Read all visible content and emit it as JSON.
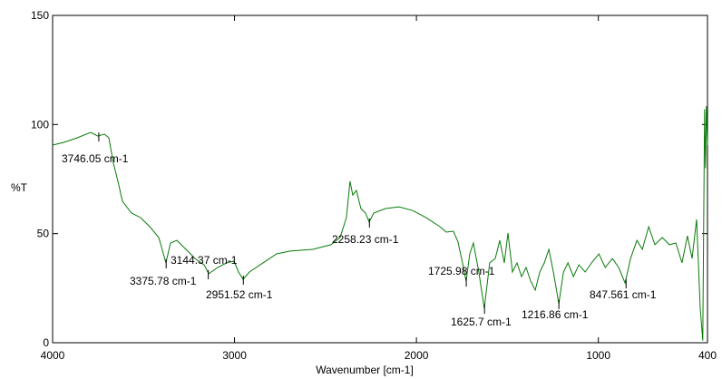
{
  "chart_data": {
    "type": "line",
    "xlabel": "Wavenumber [cm-1]",
    "ylabel": "%T",
    "color": "#0a7a0a",
    "xlim": [
      4000,
      400
    ],
    "ylim": [
      0,
      150
    ],
    "xticks": [
      4000,
      3000,
      2000,
      1000,
      400
    ],
    "yticks": [
      0,
      50,
      100,
      150
    ],
    "x": [
      4000,
      3940,
      3865,
      3791,
      3751,
      3716,
      3691,
      3666,
      3641,
      3616,
      3566,
      3516,
      3466,
      3416,
      3377,
      3352,
      3317,
      3267,
      3217,
      3167,
      3142,
      3093,
      3043,
      3003,
      2978,
      2953,
      2918,
      2843,
      2769,
      2694,
      2569,
      2470,
      2420,
      2385,
      2365,
      2350,
      2330,
      2305,
      2280,
      2260,
      2235,
      2170,
      2096,
      2021,
      1946,
      1871,
      1836,
      1797,
      1772,
      1747,
      1727,
      1707,
      1687,
      1657,
      1627,
      1597,
      1567,
      1542,
      1517,
      1497,
      1472,
      1447,
      1422,
      1397,
      1372,
      1347,
      1322,
      1297,
      1272,
      1247,
      1217,
      1192,
      1167,
      1137,
      1107,
      1072,
      1037,
      997,
      962,
      923,
      888,
      853,
      823,
      788,
      758,
      723,
      689,
      649,
      609,
      574,
      540,
      510,
      485,
      460,
      440,
      426,
      416,
      411,
      406,
      400
    ],
    "values": [
      90.6,
      91.8,
      93.9,
      96.4,
      94.7,
      95.6,
      93.9,
      82.3,
      74,
      64.8,
      59.4,
      57.3,
      53.2,
      48.2,
      36.6,
      45.7,
      46.9,
      42.8,
      38.6,
      35.7,
      31.6,
      34.5,
      36.6,
      37.4,
      32.4,
      29.1,
      32.4,
      36.6,
      40.7,
      42,
      42.8,
      44.9,
      48.2,
      57.3,
      74,
      67.7,
      69.8,
      61.5,
      59.4,
      55.3,
      59.4,
      61.5,
      62.3,
      60.6,
      57.3,
      53.2,
      50.7,
      51.1,
      46.4,
      36.6,
      28.2,
      40.7,
      45.7,
      32.4,
      15.8,
      36.6,
      38.6,
      46.9,
      36.6,
      50.3,
      32.4,
      36.6,
      30.3,
      34.5,
      28.2,
      24.1,
      32.4,
      36.6,
      42.8,
      32.4,
      17.9,
      32.4,
      36.6,
      30.3,
      35.7,
      32.4,
      36.6,
      40.7,
      34.5,
      38.6,
      34.5,
      27.4,
      38.6,
      46.9,
      42.8,
      53.2,
      44.9,
      48.2,
      44.9,
      45.7,
      36.6,
      49,
      38.6,
      56.5,
      15.8,
      1,
      107,
      80,
      108.4,
      90.6
    ],
    "annotations": [
      {
        "text": "3746.05 cm-1",
        "x": 3746.05,
        "y": 94.7
      },
      {
        "text": "3144.37 cm-1",
        "x": 3144.37,
        "y": 31.6
      },
      {
        "text": "3375.78 cm-1",
        "x": 3375.78,
        "y": 36.6
      },
      {
        "text": "2951.52 cm-1",
        "x": 2951.52,
        "y": 29.1
      },
      {
        "text": "2258.23 cm-1",
        "x": 2258.23,
        "y": 55.3
      },
      {
        "text": "1725.98 cm-1",
        "x": 1725.98,
        "y": 28.2
      },
      {
        "text": "1625.7 cm-1",
        "x": 1625.7,
        "y": 15.8
      },
      {
        "text": "1216.86 cm-1",
        "x": 1216.86,
        "y": 17.9
      },
      {
        "text": "847.561 cm-1",
        "x": 847.561,
        "y": 27.4
      }
    ]
  }
}
